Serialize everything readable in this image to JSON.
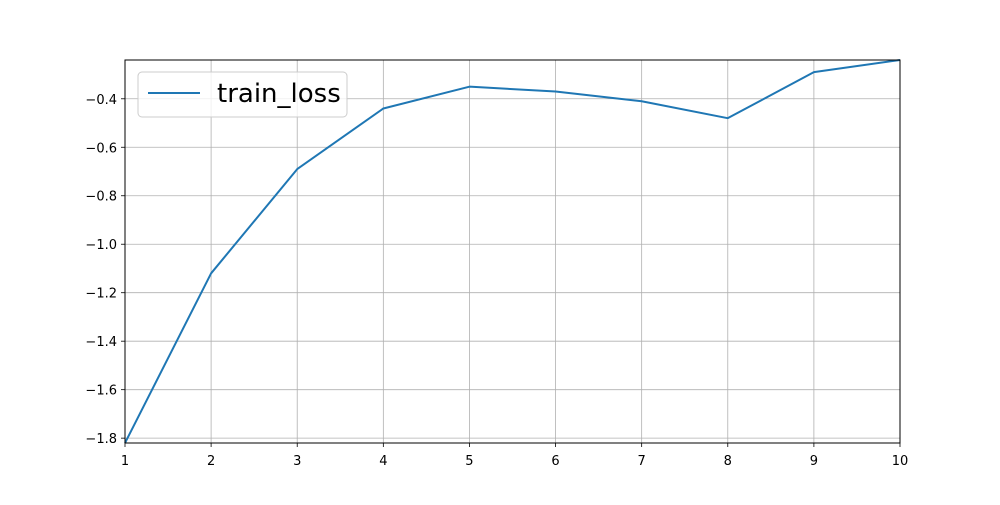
{
  "chart_data": {
    "type": "line",
    "title": "",
    "xlabel": "",
    "ylabel": "",
    "xlim": [
      1,
      10
    ],
    "ylim": [
      -1.82,
      -0.24
    ],
    "xticks": [
      1,
      2,
      3,
      4,
      5,
      6,
      7,
      8,
      9,
      10
    ],
    "yticks": [
      -1.8,
      -1.6,
      -1.4,
      -1.2,
      -1.0,
      -0.8,
      -0.6,
      -0.4
    ],
    "ytick_labels": [
      "−1.8",
      "−1.6",
      "−1.4",
      "−1.2",
      "−1.0",
      "−0.8",
      "−0.6",
      "−0.4"
    ],
    "grid": true,
    "legend_position": "upper-left",
    "series": [
      {
        "name": "train_loss",
        "color": "#1f77b4",
        "x": [
          1,
          2,
          3,
          4,
          5,
          6,
          7,
          8,
          9,
          10
        ],
        "y": [
          -1.82,
          -1.12,
          -0.69,
          -0.44,
          -0.35,
          -0.37,
          -0.41,
          -0.48,
          -0.29,
          -0.24
        ]
      }
    ]
  }
}
